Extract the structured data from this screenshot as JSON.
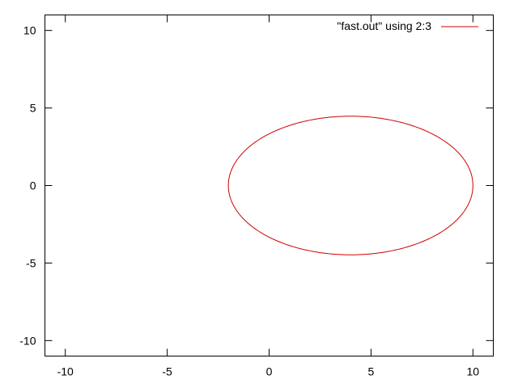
{
  "chart_data": {
    "type": "line",
    "title": "",
    "xlabel": "",
    "ylabel": "",
    "xlim": [
      -11,
      11
    ],
    "ylim": [
      -11,
      11
    ],
    "x_ticks": [
      -10,
      -5,
      0,
      5,
      10
    ],
    "y_ticks": [
      -10,
      -5,
      0,
      5,
      10
    ],
    "x_tick_labels": [
      "-10",
      "-5",
      "0",
      "5",
      "10"
    ],
    "y_tick_labels": [
      "-10",
      "-5",
      "0",
      "5",
      "10"
    ],
    "grid": false,
    "legend_position": "top-right",
    "series": [
      {
        "name": "\"fast.out\" using 2:3",
        "color": "#cc0000",
        "shape": "ellipse",
        "center": [
          4,
          0
        ],
        "semi_axis_x": 6,
        "semi_axis_y": 4.47,
        "x_range": [
          -2,
          10
        ],
        "y_range": [
          -4.47,
          4.47
        ]
      }
    ]
  }
}
